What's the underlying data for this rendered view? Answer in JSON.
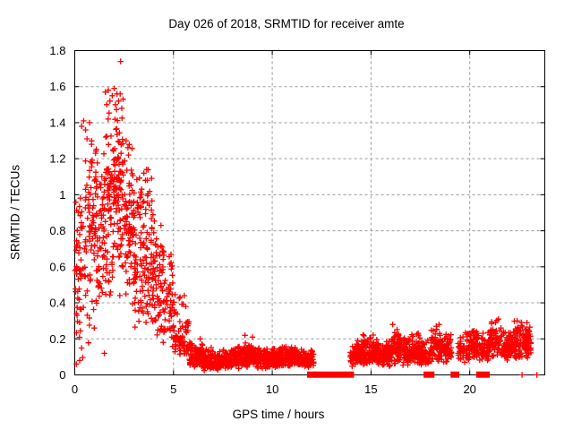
{
  "chart_data": {
    "type": "scatter",
    "title": "Day 026 of 2018, SRMTID for receiver amte",
    "xlabel": "GPS time / hours",
    "ylabel": "SRMTID / TECUs",
    "xlim": [
      0,
      23.8
    ],
    "ylim": [
      0,
      1.8
    ],
    "xticks": [
      0,
      5,
      10,
      15,
      20
    ],
    "yticks": [
      0,
      0.2,
      0.4,
      0.6,
      0.8,
      1,
      1.2,
      1.4,
      1.6,
      1.8
    ],
    "grid": true,
    "legend": "none",
    "marker": {
      "shape": "plus",
      "color": "#ff0000",
      "size": 6.4
    },
    "colors": {
      "grid": "#999999",
      "axis": "#000000",
      "background": "#ffffff",
      "text": "#000000"
    },
    "segments_format": "[t_start_hours, t_end_hours, n_points, y_min_TECUs, y_max_TECUs, y_mode_TECUs] — density envelope read from the plot; points regenerated deterministically from these ranges",
    "density_segments": [
      [
        0.0,
        0.5,
        55,
        0.05,
        1.05,
        0.7
      ],
      [
        0.5,
        1.0,
        65,
        0.15,
        1.42,
        0.85
      ],
      [
        1.0,
        1.5,
        70,
        0.3,
        1.32,
        0.9
      ],
      [
        1.5,
        2.0,
        80,
        0.3,
        1.5,
        1.0
      ],
      [
        2.0,
        2.5,
        85,
        0.35,
        1.55,
        1.05
      ],
      [
        2.5,
        3.0,
        75,
        0.3,
        1.32,
        0.8
      ],
      [
        3.0,
        3.5,
        70,
        0.2,
        1.15,
        0.6
      ],
      [
        3.5,
        4.0,
        70,
        0.12,
        1.16,
        0.55
      ],
      [
        4.0,
        4.5,
        60,
        0.15,
        0.92,
        0.45
      ],
      [
        4.5,
        5.0,
        50,
        0.12,
        0.8,
        0.33
      ],
      [
        5.0,
        5.5,
        45,
        0.08,
        0.52,
        0.2
      ],
      [
        5.5,
        5.8,
        28,
        0.05,
        0.4,
        0.15
      ],
      [
        5.8,
        6.5,
        90,
        0.03,
        0.2,
        0.08
      ],
      [
        6.5,
        7.0,
        70,
        0.02,
        0.16,
        0.07
      ],
      [
        7.0,
        7.5,
        70,
        0.02,
        0.13,
        0.06
      ],
      [
        7.5,
        8.0,
        70,
        0.03,
        0.15,
        0.07
      ],
      [
        8.0,
        8.5,
        70,
        0.03,
        0.17,
        0.08
      ],
      [
        8.5,
        9.0,
        70,
        0.04,
        0.2,
        0.09
      ],
      [
        9.0,
        9.5,
        70,
        0.03,
        0.16,
        0.08
      ],
      [
        9.5,
        10.0,
        70,
        0.03,
        0.15,
        0.07
      ],
      [
        10.0,
        10.5,
        70,
        0.04,
        0.16,
        0.08
      ],
      [
        10.5,
        11.0,
        70,
        0.04,
        0.17,
        0.08
      ],
      [
        11.0,
        11.5,
        70,
        0.04,
        0.16,
        0.08
      ],
      [
        11.5,
        12.1,
        70,
        0.03,
        0.15,
        0.07
      ],
      [
        13.95,
        14.5,
        60,
        0.04,
        0.2,
        0.1
      ],
      [
        14.5,
        15.0,
        65,
        0.05,
        0.24,
        0.11
      ],
      [
        15.0,
        15.5,
        65,
        0.05,
        0.25,
        0.11
      ],
      [
        15.5,
        16.0,
        65,
        0.04,
        0.2,
        0.1
      ],
      [
        16.0,
        16.5,
        65,
        0.05,
        0.28,
        0.12
      ],
      [
        16.5,
        17.0,
        65,
        0.05,
        0.22,
        0.11
      ],
      [
        17.0,
        17.5,
        65,
        0.05,
        0.25,
        0.12
      ],
      [
        17.5,
        18.0,
        55,
        0.04,
        0.2,
        0.1
      ],
      [
        18.0,
        18.5,
        65,
        0.06,
        0.28,
        0.13
      ],
      [
        18.5,
        19.1,
        65,
        0.05,
        0.24,
        0.12
      ],
      [
        19.4,
        20.0,
        60,
        0.06,
        0.25,
        0.13
      ],
      [
        20.0,
        20.5,
        60,
        0.07,
        0.27,
        0.14
      ],
      [
        20.5,
        21.0,
        55,
        0.06,
        0.24,
        0.13
      ],
      [
        21.0,
        21.6,
        70,
        0.08,
        0.31,
        0.16
      ],
      [
        21.6,
        22.1,
        65,
        0.07,
        0.26,
        0.14
      ],
      [
        22.1,
        22.7,
        70,
        0.08,
        0.31,
        0.16
      ],
      [
        22.7,
        23.1,
        55,
        0.08,
        0.28,
        0.15
      ]
    ],
    "highlight_points": [
      [
        2.32,
        1.74
      ],
      [
        1.55,
        1.57
      ],
      [
        1.62,
        1.5
      ],
      [
        1.7,
        1.58
      ],
      [
        1.78,
        1.52
      ],
      [
        1.9,
        1.55
      ],
      [
        2.0,
        1.59
      ],
      [
        2.06,
        1.5
      ],
      [
        2.14,
        1.56
      ],
      [
        2.22,
        1.52
      ],
      [
        2.3,
        1.56
      ],
      [
        2.38,
        1.48
      ],
      [
        2.45,
        1.53
      ],
      [
        0.35,
        1.38
      ],
      [
        0.45,
        1.41
      ],
      [
        0.55,
        1.36
      ],
      [
        0.62,
        1.31
      ],
      [
        0.75,
        1.4
      ],
      [
        0.85,
        1.28
      ],
      [
        3.5,
        1.12
      ],
      [
        3.58,
        1.08
      ],
      [
        3.64,
        1.14
      ],
      [
        2.6,
        1.3
      ],
      [
        2.72,
        1.22
      ],
      [
        1.5,
        0.12
      ],
      [
        0.08,
        0.06
      ],
      [
        0.25,
        0.08
      ],
      [
        5.55,
        0.44
      ],
      [
        5.62,
        0.38
      ],
      [
        6.35,
        0.2
      ],
      [
        8.62,
        0.22
      ],
      [
        9.0,
        0.21
      ],
      [
        16.1,
        0.28
      ],
      [
        18.45,
        0.28
      ],
      [
        21.45,
        0.31
      ],
      [
        22.4,
        0.3
      ],
      [
        22.9,
        0.29
      ],
      [
        22.65,
        0
      ],
      [
        23.4,
        0
      ]
    ],
    "zero_value_runs": [
      [
        11.85,
        12.15
      ],
      [
        12.2,
        13.65
      ],
      [
        13.8,
        14.05
      ],
      [
        17.75,
        18.12
      ],
      [
        19.12,
        19.38
      ],
      [
        20.42,
        20.92
      ]
    ]
  }
}
